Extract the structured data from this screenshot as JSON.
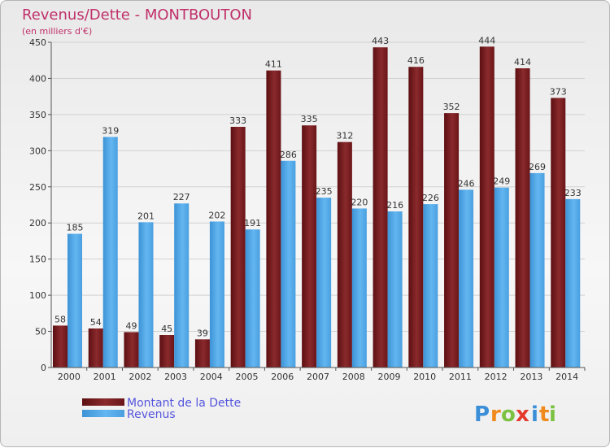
{
  "chart_data": {
    "type": "bar",
    "title": "Revenus/Dette - MONTBOUTON",
    "subtitle": "(en milliers d'€)",
    "categories": [
      "2000",
      "2001",
      "2002",
      "2003",
      "2004",
      "2005",
      "2006",
      "2007",
      "2008",
      "2009",
      "2010",
      "2011",
      "2012",
      "2013",
      "2014"
    ],
    "series": [
      {
        "name": "Montant de la Dette",
        "color": "#7a1f22",
        "values": [
          58,
          54,
          49,
          45,
          39,
          333,
          411,
          335,
          312,
          443,
          416,
          352,
          444,
          414,
          373
        ]
      },
      {
        "name": "Revenus",
        "color": "#4ea6e6",
        "values": [
          185,
          319,
          201,
          227,
          202,
          191,
          286,
          235,
          220,
          216,
          226,
          246,
          249,
          269,
          233
        ]
      }
    ],
    "ylim": [
      0,
      450
    ],
    "yticks": [
      0,
      50,
      100,
      150,
      200,
      250,
      300,
      350,
      400,
      450
    ],
    "grid": true,
    "legend_position": "bottom-left"
  },
  "brand": {
    "letters": [
      "P",
      "r",
      "o",
      "x",
      "i",
      "t",
      "i"
    ],
    "colors": [
      "#3a8fd8",
      "#f08a1c",
      "#7cc242",
      "#e43a2b",
      "#3a8fd8",
      "#f08a1c",
      "#7cc242"
    ]
  }
}
